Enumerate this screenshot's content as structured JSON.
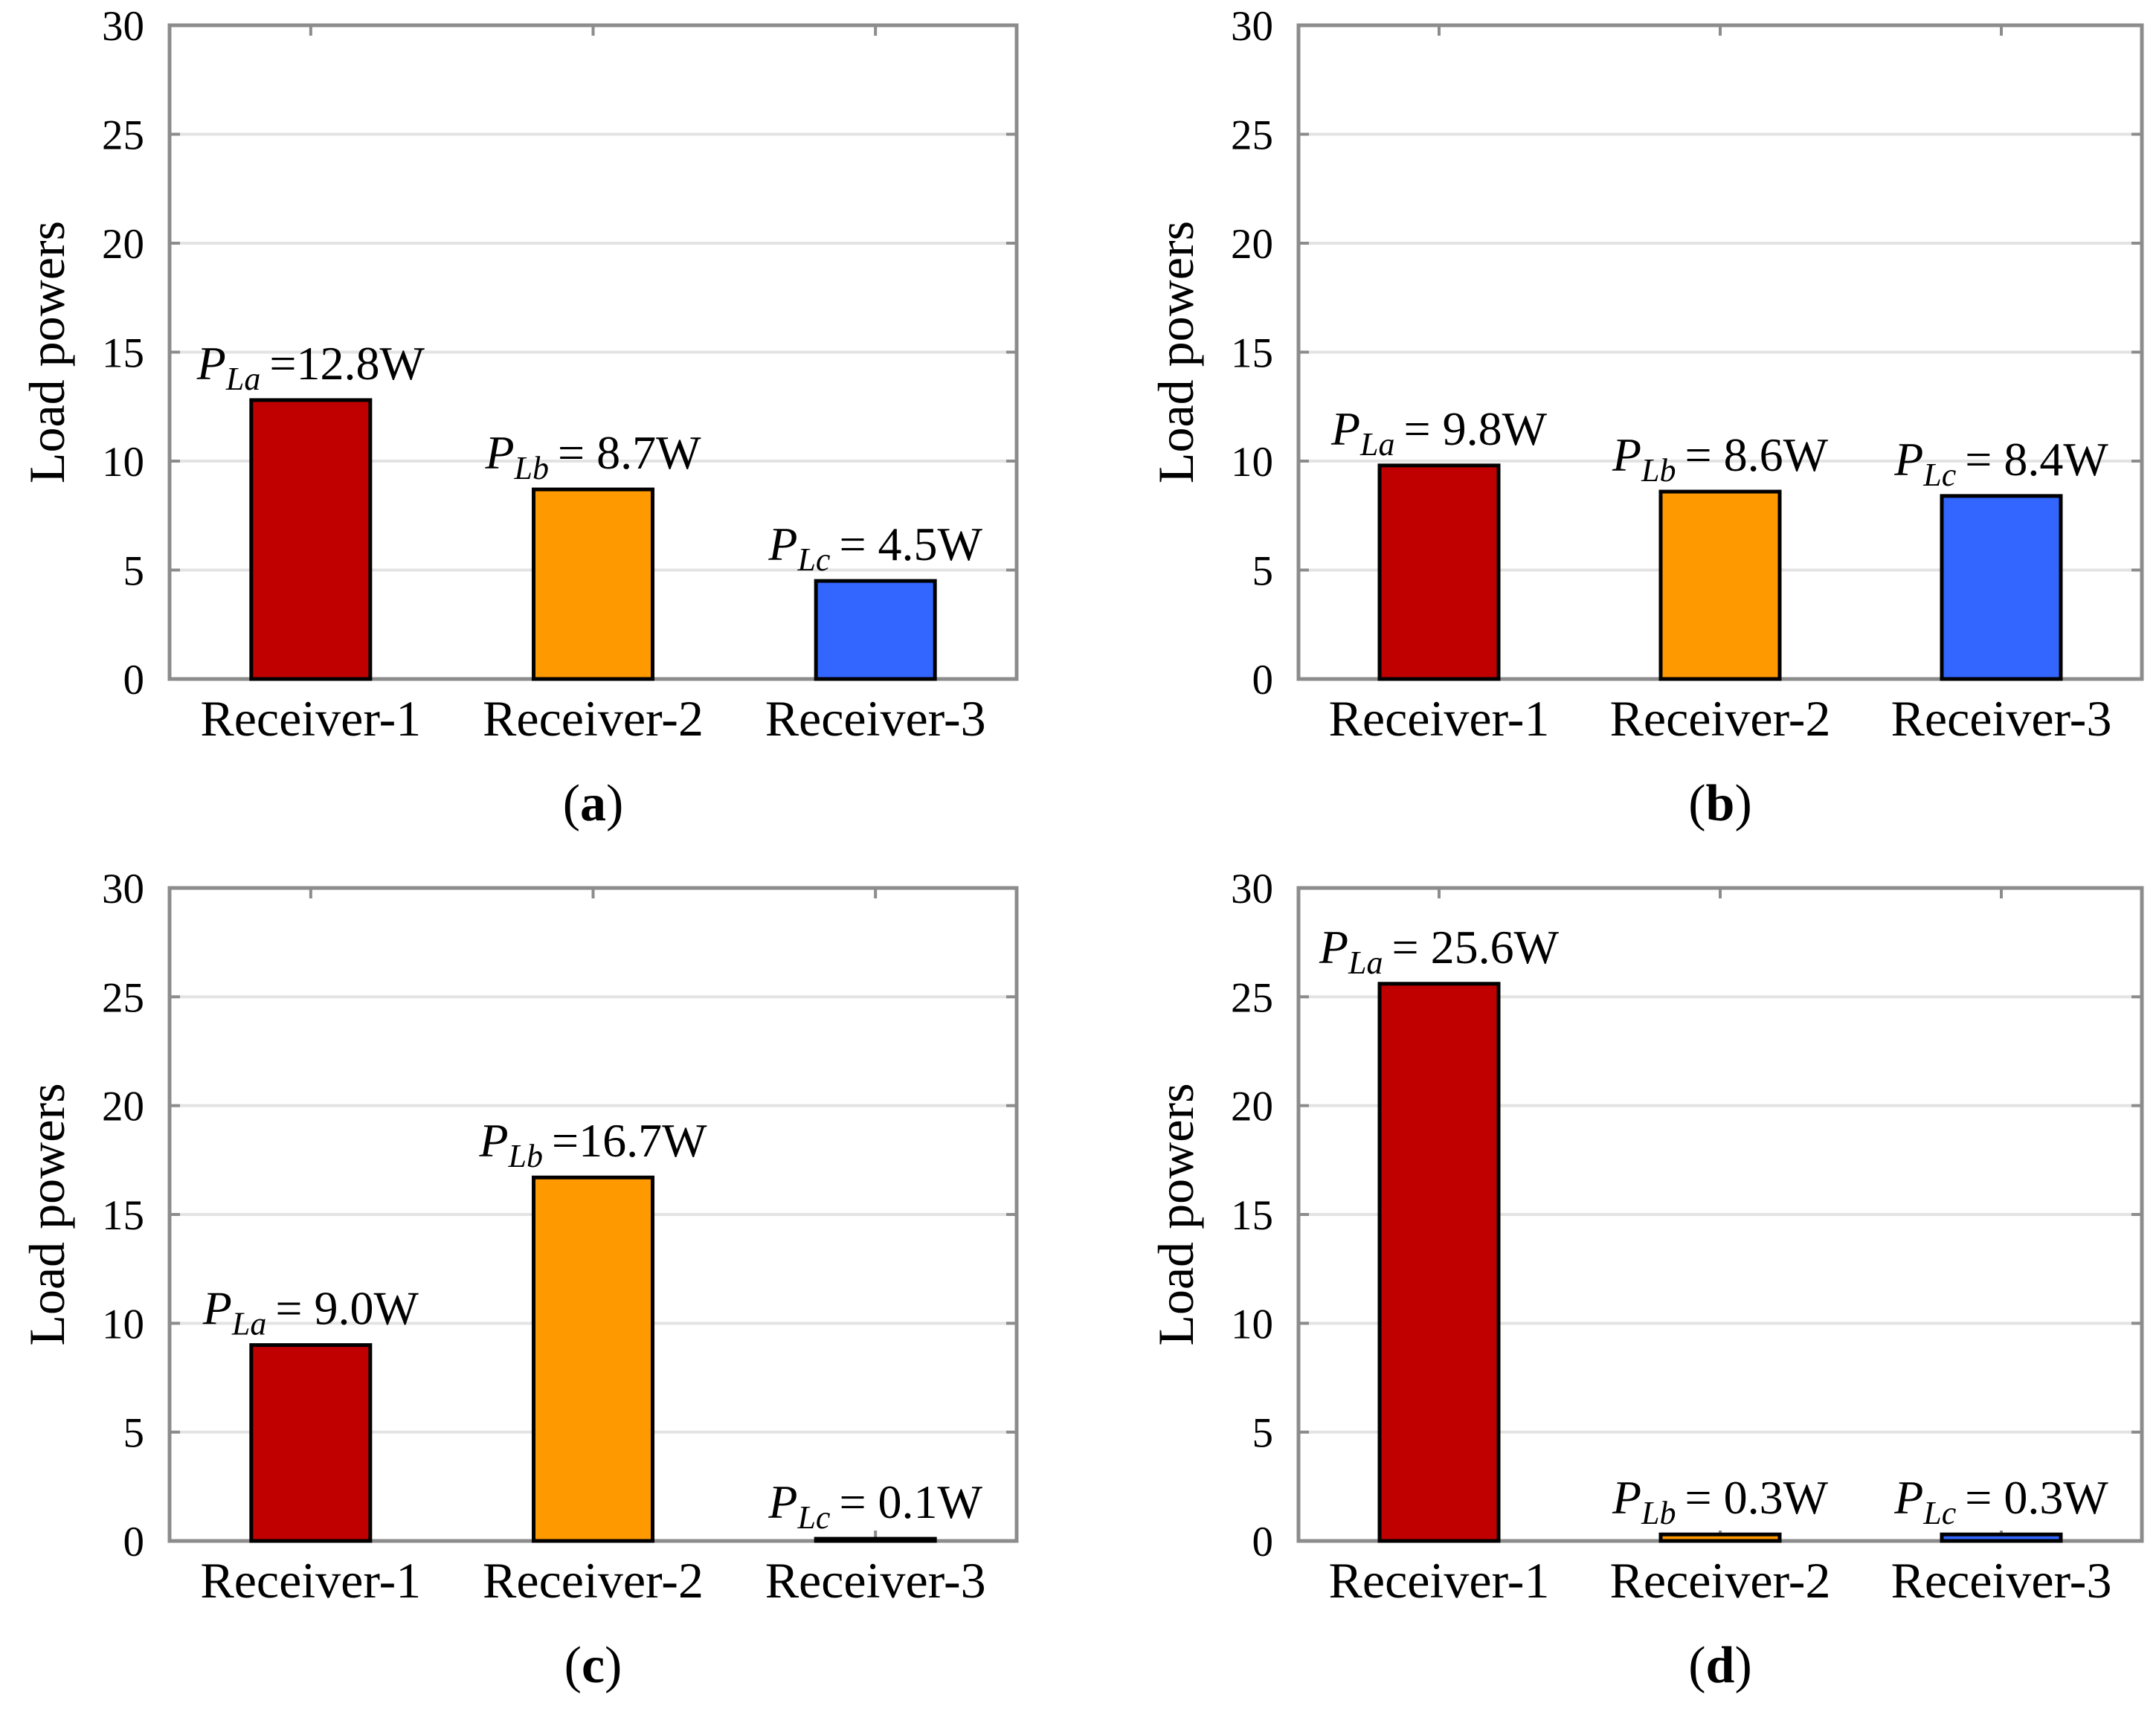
{
  "chart_data": [
    {
      "type": "bar",
      "panel": "a",
      "title": "(a)",
      "ylabel": "Load powers",
      "xlabel": "",
      "ylim": [
        0,
        30
      ],
      "yticks": [
        0,
        5,
        10,
        15,
        20,
        25,
        30
      ],
      "categories": [
        "Receiver-1",
        "Receiver-2",
        "Receiver-3"
      ],
      "values": [
        12.8,
        8.7,
        4.5
      ],
      "colors": [
        "#c00000",
        "#ff9900",
        "#3366ff"
      ],
      "annotations": [
        {
          "symbol": "P",
          "sub": "La",
          "text": "=12.8W"
        },
        {
          "symbol": "P",
          "sub": "Lb",
          "text": "= 8.7W"
        },
        {
          "symbol": "P",
          "sub": "Lc",
          "text": "= 4.5W"
        }
      ]
    },
    {
      "type": "bar",
      "panel": "b",
      "title": "(b)",
      "ylabel": "Load powers",
      "xlabel": "",
      "ylim": [
        0,
        30
      ],
      "yticks": [
        0,
        5,
        10,
        15,
        20,
        25,
        30
      ],
      "categories": [
        "Receiver-1",
        "Receiver-2",
        "Receiver-3"
      ],
      "values": [
        9.8,
        8.6,
        8.4
      ],
      "colors": [
        "#c00000",
        "#ff9900",
        "#3366ff"
      ],
      "annotations": [
        {
          "symbol": "P",
          "sub": "La",
          "text": "= 9.8W"
        },
        {
          "symbol": "P",
          "sub": "Lb",
          "text": "= 8.6W"
        },
        {
          "symbol": "P",
          "sub": "Lc",
          "text": "= 8.4W"
        }
      ]
    },
    {
      "type": "bar",
      "panel": "c",
      "title": "(c)",
      "ylabel": "Load powers",
      "xlabel": "",
      "ylim": [
        0,
        30
      ],
      "yticks": [
        0,
        5,
        10,
        15,
        20,
        25,
        30
      ],
      "categories": [
        "Receiver-1",
        "Receiver-2",
        "Receiver-3"
      ],
      "values": [
        9.0,
        16.7,
        0.1
      ],
      "colors": [
        "#c00000",
        "#ff9900",
        "#3366ff"
      ],
      "annotations": [
        {
          "symbol": "P",
          "sub": "La",
          "text": "= 9.0W"
        },
        {
          "symbol": "P",
          "sub": "Lb",
          "text": "=16.7W"
        },
        {
          "symbol": "P",
          "sub": "Lc",
          "text": "= 0.1W"
        }
      ]
    },
    {
      "type": "bar",
      "panel": "d",
      "title": "(d)",
      "ylabel": "Load powers",
      "xlabel": "",
      "ylim": [
        0,
        30
      ],
      "yticks": [
        0,
        5,
        10,
        15,
        20,
        25,
        30
      ],
      "categories": [
        "Receiver-1",
        "Receiver-2",
        "Receiver-3"
      ],
      "values": [
        25.6,
        0.3,
        0.3
      ],
      "colors": [
        "#c00000",
        "#ff9900",
        "#3366ff"
      ],
      "annotations": [
        {
          "symbol": "P",
          "sub": "La",
          "text": "= 25.6W"
        },
        {
          "symbol": "P",
          "sub": "Lb",
          "text": "= 0.3W"
        },
        {
          "symbol": "P",
          "sub": "Lc",
          "text": "= 0.3W"
        }
      ]
    }
  ]
}
